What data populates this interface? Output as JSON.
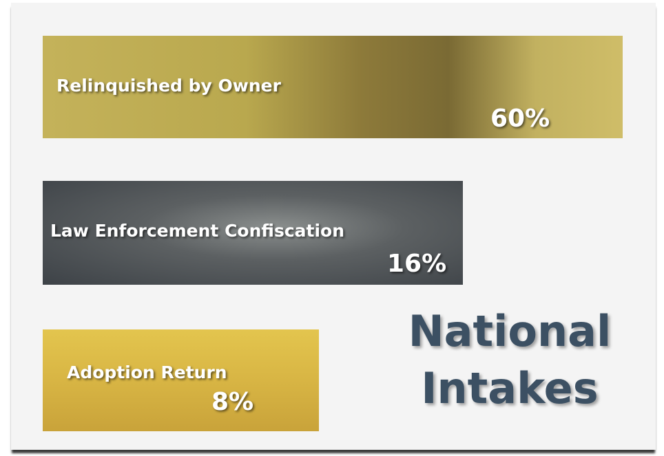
{
  "title_lines": [
    "National",
    "Intakes"
  ],
  "items": [
    {
      "label": "Relinquished by Owner",
      "value": "60%"
    },
    {
      "label": "Law Enforcement Confiscation",
      "value": "16%"
    },
    {
      "label": "Adoption Return",
      "value": "8%"
    }
  ]
}
